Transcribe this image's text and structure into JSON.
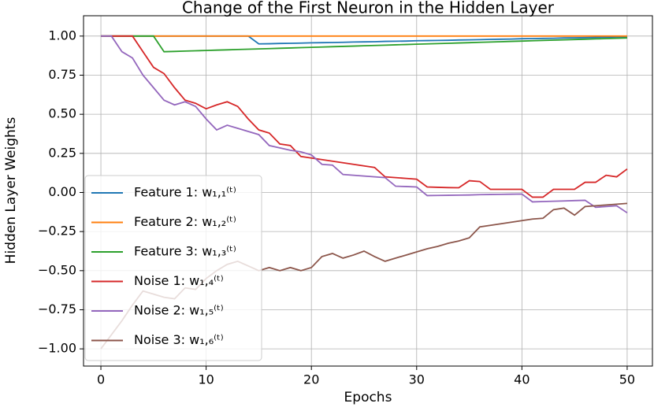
{
  "chart_data": {
    "type": "line",
    "title": "Change of the First Neuron in the Hidden Layer",
    "x_label": "Epochs",
    "y_label": "Hidden Layer Weights",
    "x": [
      0,
      1,
      2,
      3,
      4,
      5,
      6,
      7,
      8,
      9,
      10,
      11,
      12,
      13,
      14,
      15,
      16,
      17,
      18,
      19,
      20,
      21,
      22,
      23,
      24,
      25,
      26,
      27,
      28,
      29,
      30,
      31,
      32,
      33,
      34,
      35,
      36,
      37,
      38,
      39,
      40,
      41,
      42,
      43,
      44,
      45,
      46,
      47,
      48,
      49,
      50
    ],
    "xlim": [
      -1.65,
      52.4
    ],
    "ylim": [
      -1.11,
      1.13
    ],
    "xticks": [
      0,
      10,
      20,
      30,
      40,
      50
    ],
    "yticks": [
      {
        "value": -1,
        "label": "−1.00"
      },
      {
        "value": -0.75,
        "label": "−0.75"
      },
      {
        "value": -0.5,
        "label": "−0.50"
      },
      {
        "value": -0.25,
        "label": "−0.25"
      },
      {
        "value": 0,
        "label": "0.00"
      },
      {
        "value": 0.25,
        "label": "0.25"
      },
      {
        "value": 0.5,
        "label": "0.50"
      },
      {
        "value": 0.75,
        "label": "0.75"
      },
      {
        "value": 1,
        "label": "1.00"
      }
    ],
    "grid": true,
    "legend": "lower left",
    "series": [
      {
        "name": "Feature 1: w₁,₁⁽ᵗ⁾",
        "color": "#1f77b4",
        "values": [
          1,
          1,
          1,
          1,
          1,
          1,
          1,
          1,
          1,
          1,
          1,
          1,
          1,
          1,
          1,
          0.95,
          0.951,
          0.953,
          0.954,
          0.955,
          0.957,
          0.958,
          0.959,
          0.96,
          0.962,
          0.963,
          0.964,
          0.966,
          0.967,
          0.968,
          0.97,
          0.971,
          0.972,
          0.973,
          0.975,
          0.976,
          0.977,
          0.979,
          0.98,
          0.981,
          0.983,
          0.984,
          0.985,
          0.986,
          0.988,
          0.989,
          0.99,
          0.992,
          0.993,
          0.994,
          0.995
        ]
      },
      {
        "name": "Feature 2: w₁,₂⁽ᵗ⁾",
        "color": "#ff7f0e",
        "values": [
          1,
          1,
          1,
          1,
          1,
          1,
          1,
          1,
          1,
          1,
          1,
          1,
          1,
          1,
          1,
          1,
          1,
          1,
          1,
          1,
          1,
          1,
          1,
          1,
          1,
          1,
          1,
          1,
          1,
          1,
          1,
          1,
          1,
          1,
          1,
          1,
          1,
          1,
          1,
          1,
          1,
          1,
          1,
          1,
          1,
          1,
          1,
          1,
          1,
          1,
          1
        ]
      },
      {
        "name": "Feature 3: w₁,₃⁽ᵗ⁾",
        "color": "#2ca02c",
        "values": [
          1,
          1,
          1,
          1,
          1,
          1,
          0.9,
          0.902,
          0.904,
          0.906,
          0.908,
          0.91,
          0.912,
          0.914,
          0.916,
          0.918,
          0.92,
          0.922,
          0.924,
          0.926,
          0.928,
          0.93,
          0.932,
          0.934,
          0.936,
          0.938,
          0.94,
          0.942,
          0.944,
          0.946,
          0.948,
          0.95,
          0.952,
          0.954,
          0.956,
          0.958,
          0.96,
          0.962,
          0.964,
          0.966,
          0.968,
          0.97,
          0.972,
          0.974,
          0.976,
          0.978,
          0.98,
          0.982,
          0.984,
          0.986,
          0.988
        ]
      },
      {
        "name": "Noise 1: w₁,₄⁽ᵗ⁾",
        "color": "#d62728",
        "values": [
          1,
          1,
          1,
          1,
          0.9,
          0.8,
          0.76,
          0.67,
          0.59,
          0.57,
          0.535,
          0.56,
          0.58,
          0.55,
          0.47,
          0.4,
          0.38,
          0.31,
          0.3,
          0.23,
          0.22,
          0.21,
          0.2,
          0.19,
          0.18,
          0.17,
          0.16,
          0.1,
          0.095,
          0.09,
          0.085,
          0.035,
          0.033,
          0.031,
          0.03,
          0.075,
          0.07,
          0.02,
          0.02,
          0.02,
          0.02,
          -0.03,
          -0.03,
          0.02,
          0.02,
          0.02,
          0.065,
          0.065,
          0.11,
          0.1,
          0.15
        ]
      },
      {
        "name": "Noise 2: w₁,₅⁽ᵗ⁾",
        "color": "#9467bd",
        "values": [
          1,
          1,
          0.9,
          0.86,
          0.75,
          0.67,
          0.59,
          0.56,
          0.58,
          0.55,
          0.47,
          0.4,
          0.43,
          0.41,
          0.39,
          0.37,
          0.3,
          0.285,
          0.27,
          0.26,
          0.24,
          0.18,
          0.175,
          0.115,
          0.11,
          0.105,
          0.1,
          0.095,
          0.04,
          0.038,
          0.035,
          -0.02,
          -0.019,
          -0.018,
          -0.017,
          -0.016,
          -0.014,
          -0.013,
          -0.012,
          -0.011,
          -0.01,
          -0.06,
          -0.058,
          -0.056,
          -0.054,
          -0.052,
          -0.05,
          -0.095,
          -0.09,
          -0.085,
          -0.13
        ]
      },
      {
        "name": "Noise 3: w₁,₆⁽ᵗ⁾",
        "color": "#8c564b",
        "values": [
          -1,
          -0.91,
          -0.82,
          -0.72,
          -0.63,
          -0.65,
          -0.67,
          -0.68,
          -0.61,
          -0.62,
          -0.55,
          -0.5,
          -0.46,
          -0.44,
          -0.47,
          -0.5,
          -0.48,
          -0.5,
          -0.48,
          -0.5,
          -0.48,
          -0.41,
          -0.39,
          -0.42,
          -0.4,
          -0.375,
          -0.41,
          -0.44,
          -0.42,
          -0.4,
          -0.38,
          -0.36,
          -0.345,
          -0.325,
          -0.31,
          -0.29,
          -0.22,
          -0.21,
          -0.2,
          -0.19,
          -0.18,
          -0.17,
          -0.165,
          -0.11,
          -0.1,
          -0.145,
          -0.09,
          -0.085,
          -0.08,
          -0.075,
          -0.07
        ]
      }
    ]
  }
}
